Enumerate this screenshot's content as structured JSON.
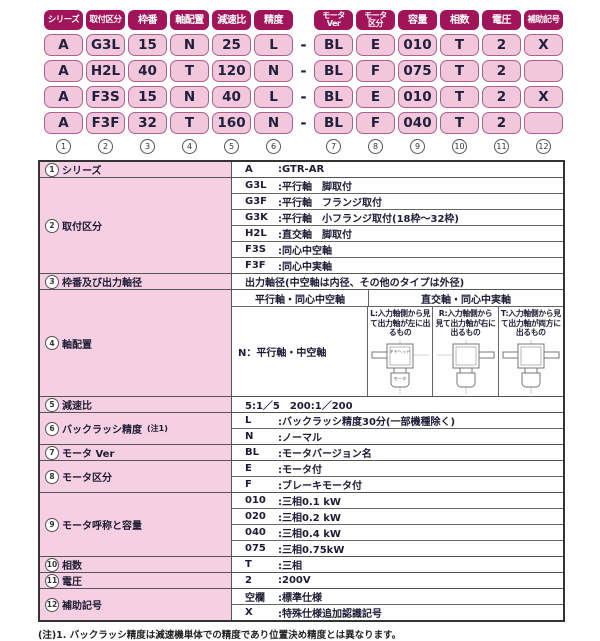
{
  "colors": {
    "badge_bg": "#A21459",
    "badge_text": "#FFFFFF",
    "code_cell_bg": "#F3C7DB",
    "code_cell_border": "#A9618D",
    "spec_label_bg": "#F7CFE2",
    "table_border": "#333333",
    "ink": "#1C1C34"
  },
  "code_table": {
    "separator": "-",
    "columns": [
      {
        "num": "1",
        "header": "シリーズ",
        "values": [
          "A",
          "A",
          "A",
          "A"
        ]
      },
      {
        "num": "2",
        "header": "取付区分",
        "values": [
          "G3L",
          "H2L",
          "F3S",
          "F3F"
        ]
      },
      {
        "num": "3",
        "header": "枠番",
        "values": [
          "15",
          "40",
          "15",
          "32"
        ]
      },
      {
        "num": "4",
        "header": "軸配置",
        "values": [
          "N",
          "T",
          "N",
          "T"
        ]
      },
      {
        "num": "5",
        "header": "減速比",
        "values": [
          "25",
          "120",
          "40",
          "160"
        ]
      },
      {
        "num": "6",
        "header": "精度",
        "values": [
          "L",
          "N",
          "L",
          "N"
        ]
      },
      {
        "num": "7",
        "header": "モータ",
        "header2": "Ver",
        "values": [
          "BL",
          "BL",
          "BL",
          "BL"
        ]
      },
      {
        "num": "8",
        "header": "モータ",
        "header2": "区分",
        "values": [
          "E",
          "F",
          "E",
          "F"
        ]
      },
      {
        "num": "9",
        "header": "容量",
        "values": [
          "010",
          "075",
          "010",
          "040"
        ]
      },
      {
        "num": "10",
        "header": "相数",
        "values": [
          "T",
          "T",
          "T",
          "T"
        ]
      },
      {
        "num": "11",
        "header": "電圧",
        "values": [
          "2",
          "2",
          "2",
          "2"
        ]
      },
      {
        "num": "12",
        "header": "補助記号",
        "values": [
          "X",
          "",
          "X",
          ""
        ]
      }
    ]
  },
  "spec_table": {
    "rows": [
      {
        "num": "1",
        "label": "シリーズ",
        "entries": [
          {
            "code": "A",
            "desc": ":GTR-AR"
          }
        ]
      },
      {
        "num": "2",
        "label": "取付区分",
        "entries": [
          {
            "code": "G3L",
            "desc": ":平行軸　脚取付"
          },
          {
            "code": "G3F",
            "desc": ":平行軸　フランジ取付"
          },
          {
            "code": "G3K",
            "desc": ":平行軸　小フランジ取付(18枠〜32枠)"
          },
          {
            "code": "H2L",
            "desc": ":直交軸　脚取付"
          },
          {
            "code": "F3S",
            "desc": ":同心中空軸"
          },
          {
            "code": "F3F",
            "desc": ":同心中実軸"
          }
        ]
      },
      {
        "num": "3",
        "label": "枠番及び出力軸径",
        "entries": [
          {
            "text": "出力軸径(中空軸は内径、その他のタイプは外径)"
          }
        ]
      },
      {
        "num": "4",
        "label": "軸配置",
        "shaft": true,
        "entries": []
      },
      {
        "num": "5",
        "label": "減速比",
        "entries": [
          {
            "text": "5:1／5　200:1／200"
          }
        ]
      },
      {
        "num": "6",
        "label": "バックラッシ精度",
        "label_note": "(注1)",
        "entries": [
          {
            "code": "L",
            "desc": ":バックラッシ精度30分(一部機種除く)"
          },
          {
            "code": "N",
            "desc": ":ノーマル"
          }
        ]
      },
      {
        "num": "7",
        "label": "モータ Ver",
        "entries": [
          {
            "code": "BL",
            "desc": ":モータバージョン名"
          }
        ]
      },
      {
        "num": "8",
        "label": "モータ区分",
        "entries": [
          {
            "code": "E",
            "desc": ":モータ付"
          },
          {
            "code": "F",
            "desc": ":ブレーキモータ付"
          }
        ]
      },
      {
        "num": "9",
        "label": "モータ呼称と容量",
        "entries": [
          {
            "code": "010",
            "desc": ":三相0.1 kW"
          },
          {
            "code": "020",
            "desc": ":三相0.2 kW"
          },
          {
            "code": "040",
            "desc": ":三相0.4 kW"
          },
          {
            "code": "075",
            "desc": ":三相0.75kW"
          }
        ]
      },
      {
        "num": "10",
        "label": "相数",
        "entries": [
          {
            "code": "T",
            "desc": ":三相"
          }
        ]
      },
      {
        "num": "11",
        "label": "電圧",
        "entries": [
          {
            "code": "2",
            "desc": ":200V"
          }
        ]
      },
      {
        "num": "12",
        "label": "補助記号",
        "entries": [
          {
            "code": "空欄",
            "desc": ":標準仕様"
          },
          {
            "code": "X",
            "desc": ":特殊仕様追加認識記号"
          }
        ]
      }
    ]
  },
  "shaft_section": {
    "col1_header": "平行軸・同心中空軸",
    "col2_header": "直交軸・同心中実軸",
    "n_label": "N：平行軸・中空軸",
    "cells": [
      {
        "caption": "L:入力軸側から見て出力軸が左に出るもの",
        "shaft": "left",
        "labels": {
          "body": "ギヤヘッド",
          "motor": "モータ"
        }
      },
      {
        "caption": "R:入力軸側から見て出力軸が右に出るもの",
        "shaft": "right"
      },
      {
        "caption": "T:入力軸側から見て出力軸が両方に出るもの",
        "shaft": "both"
      }
    ]
  },
  "note": "(注)1. バックラッシ精度は減速機単体での精度であり位置決め精度とは異なります。"
}
